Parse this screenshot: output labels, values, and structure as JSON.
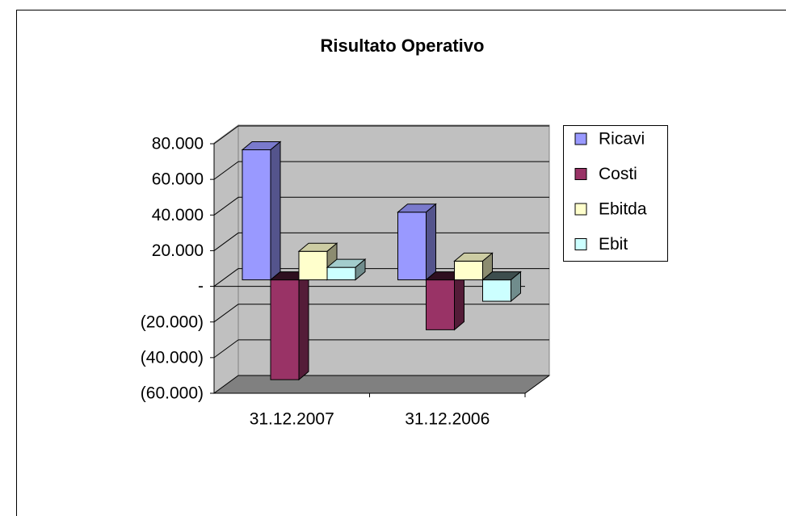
{
  "chart_data": {
    "type": "bar3d",
    "title": "Risultato Operativo",
    "categories": [
      "31.12.2007",
      "31.12.2006"
    ],
    "series": [
      {
        "name": "Ricavi",
        "color": "#9999ff",
        "values": [
          73000,
          38000
        ]
      },
      {
        "name": "Costi",
        "color": "#993366",
        "values": [
          -56000,
          -28000
        ]
      },
      {
        "name": "Ebitda",
        "color": "#ffffcc",
        "values": [
          16000,
          10500
        ]
      },
      {
        "name": "Ebit",
        "color": "#ccffff",
        "values": [
          7000,
          -12000
        ]
      }
    ],
    "ylim": [
      -60000,
      80000
    ],
    "yticks": [
      {
        "value": -60000,
        "label": "(60.000)"
      },
      {
        "value": -40000,
        "label": "(40.000)"
      },
      {
        "value": -20000,
        "label": "(20.000)"
      },
      {
        "value": 0,
        "label": "-"
      },
      {
        "value": 20000,
        "label": "20.000"
      },
      {
        "value": 40000,
        "label": "40.000"
      },
      {
        "value": 60000,
        "label": "60.000"
      },
      {
        "value": 80000,
        "label": "80.000"
      }
    ],
    "grid": true,
    "legend": "right"
  }
}
